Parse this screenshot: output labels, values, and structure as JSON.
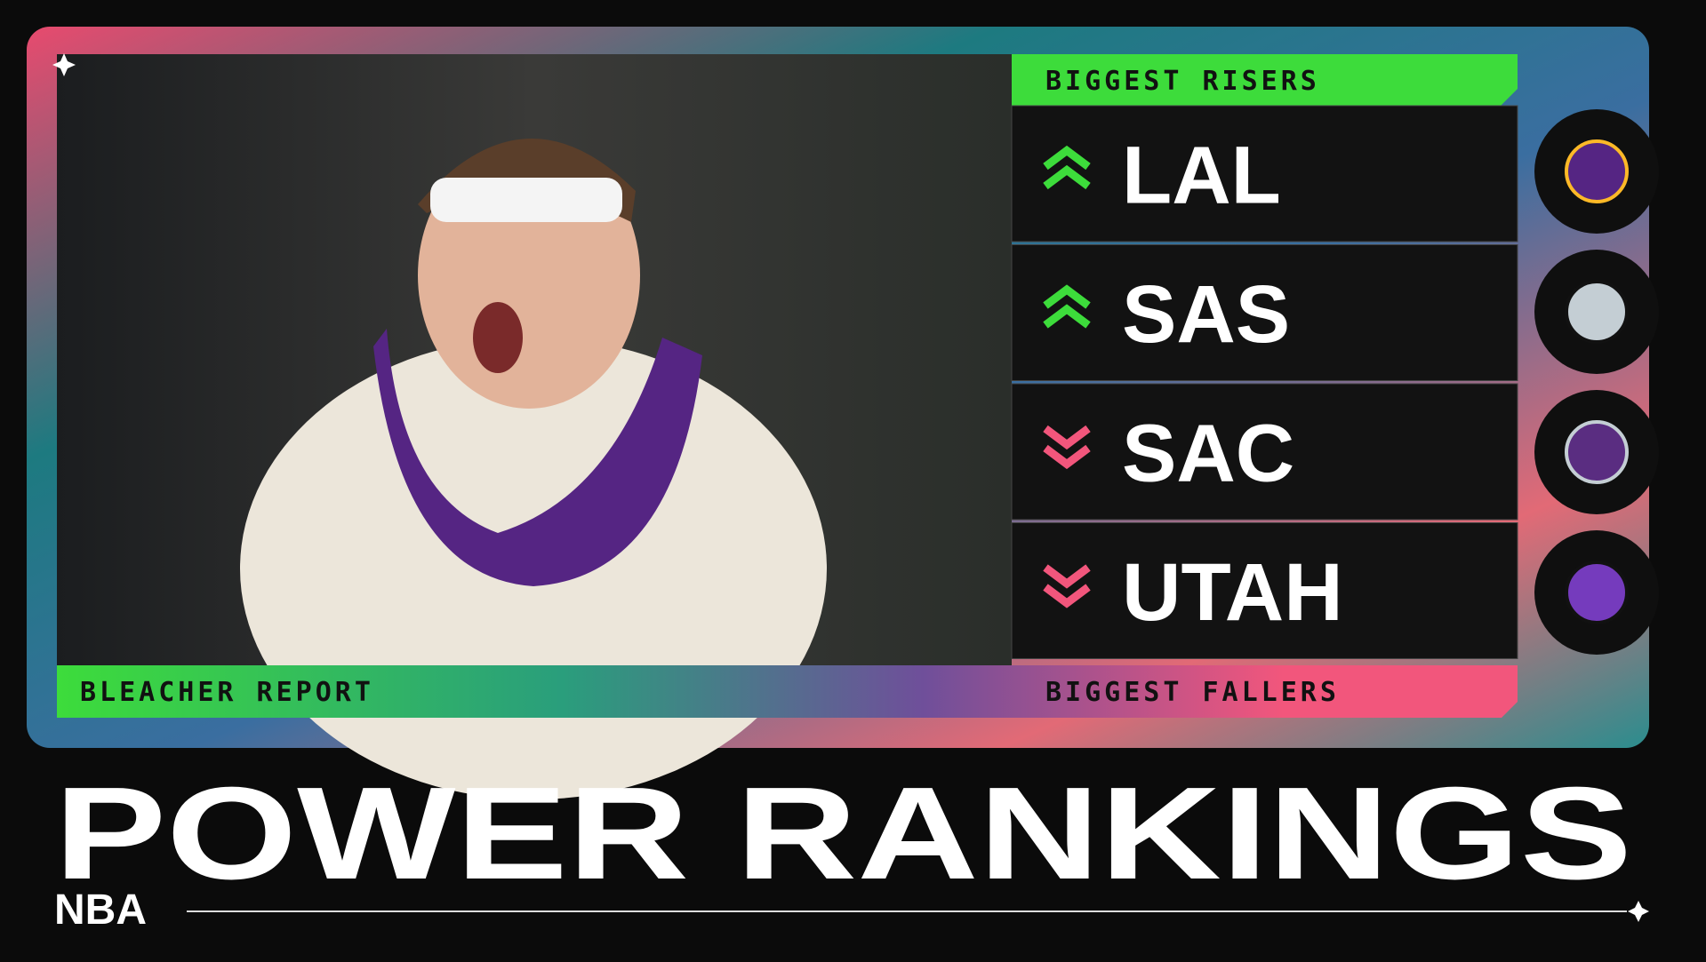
{
  "header": {
    "risers_label": "BIGGEST RISERS",
    "fallers_label": "BIGGEST FALLERS",
    "brand": "BLEACHER REPORT"
  },
  "teams": [
    {
      "abbr": "LAL",
      "direction": "up"
    },
    {
      "abbr": "SAS",
      "direction": "up"
    },
    {
      "abbr": "SAC",
      "direction": "down"
    },
    {
      "abbr": "UTAH",
      "direction": "down"
    }
  ],
  "footer": {
    "title": "POWER RANKINGS",
    "league": "NBA"
  }
}
